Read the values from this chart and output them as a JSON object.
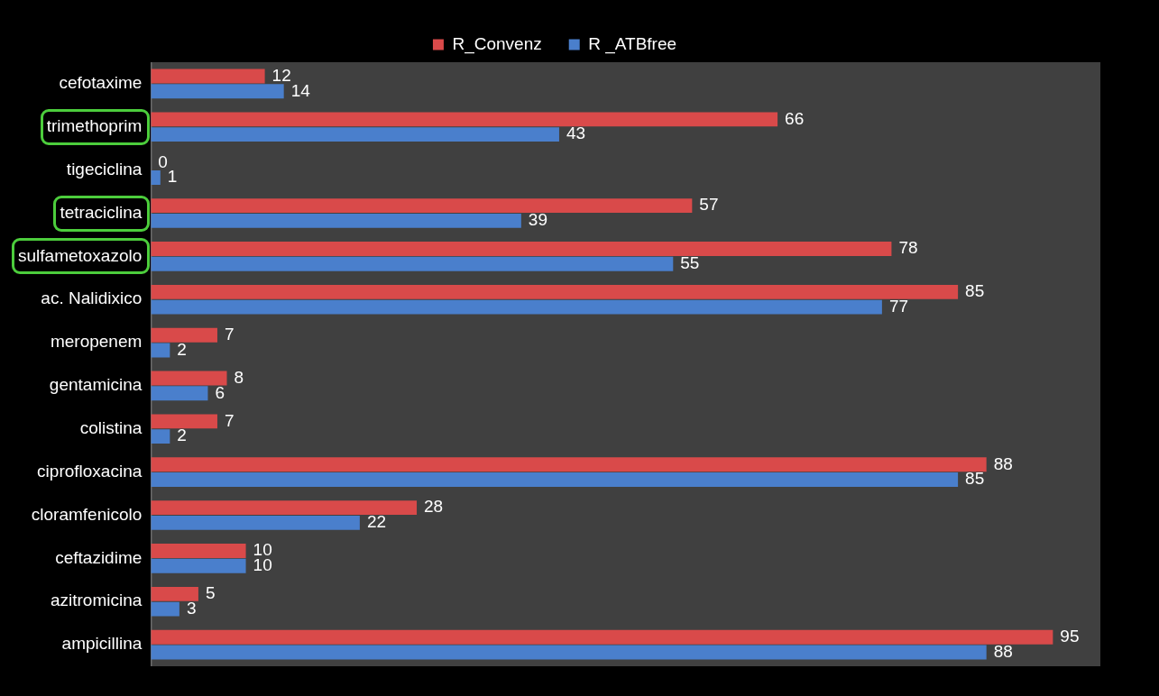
{
  "chart_data": {
    "type": "bar",
    "orientation": "horizontal",
    "legend": "top",
    "tick_labels": "y",
    "data_labels": true,
    "xlim": [
      0,
      100
    ],
    "categories": [
      "cefotaxime",
      "trimethoprim",
      "tigeciclina",
      "tetraciclina",
      "sulfametoxazolo",
      "ac. Nalidixico",
      "meropenem",
      "gentamicina",
      "colistina",
      "ciprofloxacina",
      "cloramfenicolo",
      "ceftazidime",
      "azitromicina",
      "ampicillina"
    ],
    "series": [
      {
        "name": "R_Convenz",
        "color": "#d94a4a",
        "values": [
          12,
          66,
          0,
          57,
          78,
          85,
          7,
          8,
          7,
          88,
          28,
          10,
          5,
          95
        ]
      },
      {
        "name": "R _ATBfree",
        "color": "#4a7fcc",
        "values": [
          14,
          43,
          1,
          39,
          55,
          77,
          2,
          6,
          2,
          85,
          22,
          10,
          3,
          88
        ]
      }
    ]
  }
}
